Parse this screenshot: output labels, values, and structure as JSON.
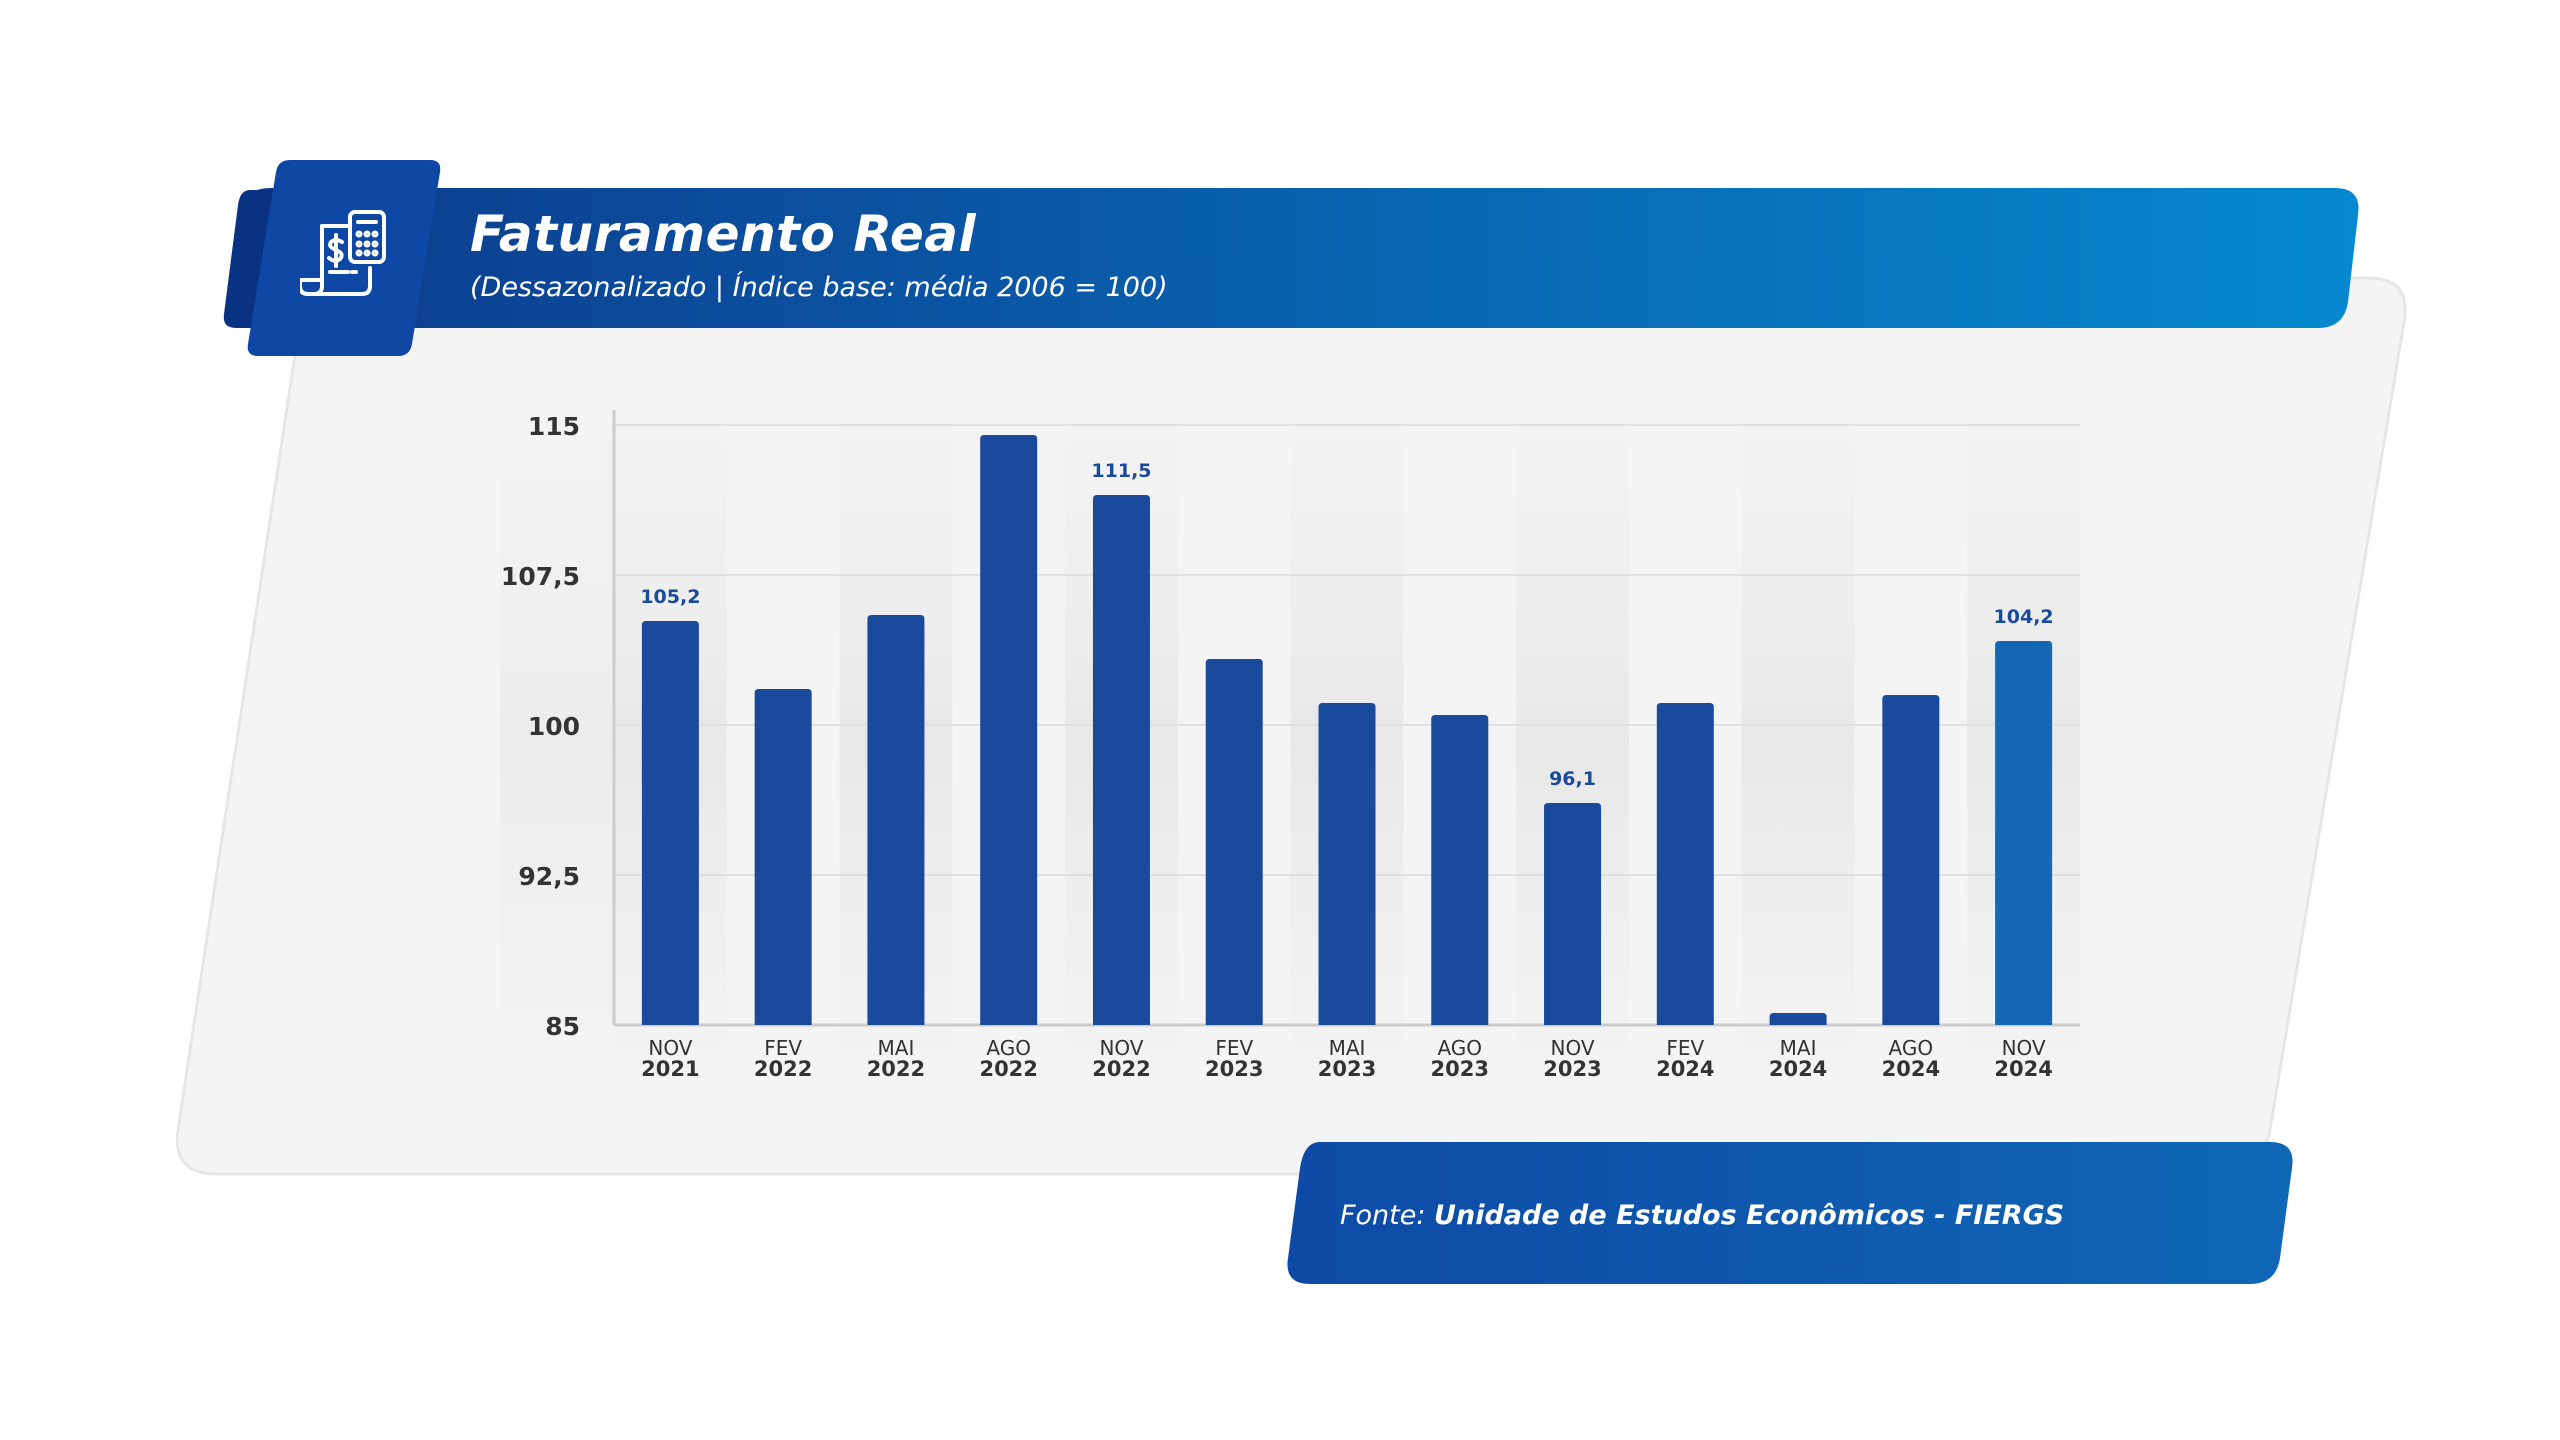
{
  "header": {
    "title": "Faturamento Real",
    "subtitle": "(Dessazonalizado | Índice base: média 2006 = 100)",
    "icon": "invoice-calculator-icon"
  },
  "footer": {
    "source_prefix": "Fonte: ",
    "source_name": "Unidade de Estudos Econômicos - FIERGS"
  },
  "colors": {
    "bar": "#1a4a9c",
    "bar_last": "#1467b3",
    "label": "#1a4a9c",
    "header_start": "#0d3a8c",
    "header_end": "#0589d0"
  },
  "chart_data": {
    "type": "bar",
    "categories": [
      [
        "NOV",
        "2021"
      ],
      [
        "FEV",
        "2022"
      ],
      [
        "MAI",
        "2022"
      ],
      [
        "AGO",
        "2022"
      ],
      [
        "NOV",
        "2022"
      ],
      [
        "FEV",
        "2023"
      ],
      [
        "MAI",
        "2023"
      ],
      [
        "AGO",
        "2023"
      ],
      [
        "NOV",
        "2023"
      ],
      [
        "FEV",
        "2024"
      ],
      [
        "MAI",
        "2024"
      ],
      [
        "AGO",
        "2024"
      ],
      [
        "NOV",
        "2024"
      ]
    ],
    "values": [
      105.2,
      101.8,
      105.5,
      114.5,
      111.5,
      103.3,
      101.1,
      100.5,
      96.1,
      101.1,
      85.6,
      101.5,
      104.2
    ],
    "data_labels": [
      "105,2",
      null,
      null,
      null,
      "111,5",
      null,
      null,
      null,
      "96,1",
      null,
      null,
      null,
      "104,2"
    ],
    "yticks": [
      85,
      92.5,
      100,
      107.5,
      115
    ],
    "ytick_labels": [
      "85",
      "92,5",
      "100",
      "107,5",
      "115"
    ],
    "ylim": [
      85,
      115
    ],
    "grid": true
  }
}
